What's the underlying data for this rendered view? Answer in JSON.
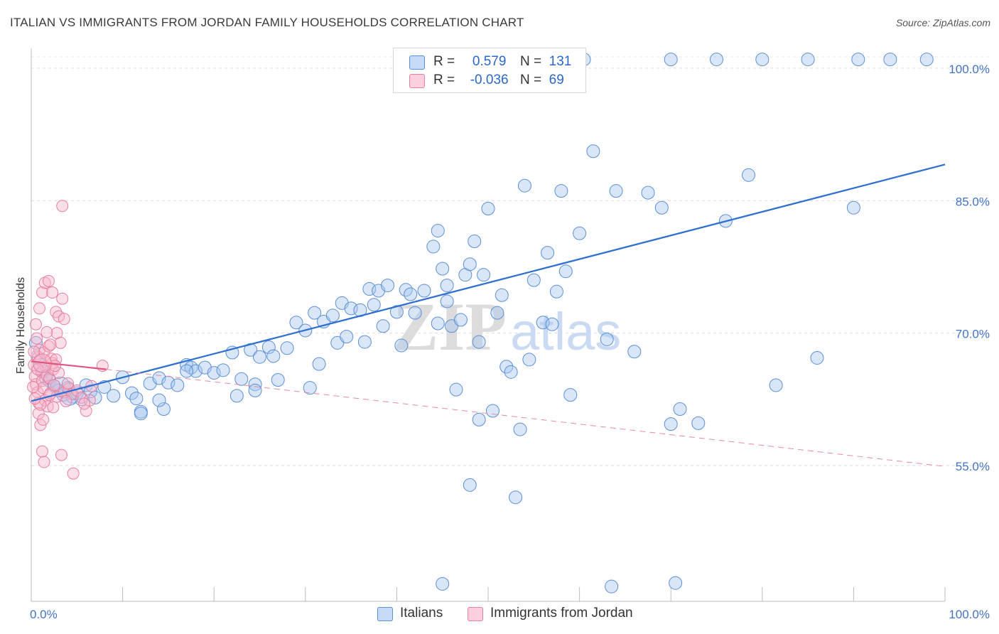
{
  "title": "ITALIAN VS IMMIGRANTS FROM JORDAN FAMILY HOUSEHOLDS CORRELATION CHART",
  "source": "Source: ZipAtlas.com",
  "watermark": {
    "zip": "ZIP",
    "atlas": "atlas"
  },
  "legend": {
    "rows": [
      {
        "r_label": "R =",
        "r_value": "0.579",
        "n_label": "N =",
        "n_value": "131",
        "color": "#a9c8f0",
        "border": "#5b8fd6"
      },
      {
        "r_label": "R =",
        "r_value": "-0.036",
        "n_label": "N =",
        "n_value": "69",
        "color": "#f7b8cc",
        "border": "#e67fa0"
      }
    ]
  },
  "bottom_legend": [
    {
      "label": "Italians",
      "color": "#a9c8f0",
      "border": "#5b8fd6"
    },
    {
      "label": "Immigrants from Jordan",
      "color": "#f7b8cc",
      "border": "#e67fa0"
    }
  ],
  "chart_data": {
    "type": "scatter",
    "xlabel": "",
    "ylabel": "Family Households",
    "xlim": [
      0,
      100
    ],
    "ylim": [
      42,
      101.5
    ],
    "x_tick_labels": [
      "0.0%",
      "100.0%"
    ],
    "y_ticks": [
      {
        "value": 100,
        "label": "100.0%"
      },
      {
        "value": 85,
        "label": "85.0%"
      },
      {
        "value": 70,
        "label": "70.0%"
      },
      {
        "value": 55,
        "label": "55.0%"
      }
    ],
    "grid": "horizontal dashed",
    "legend_position": "top-center",
    "series": [
      {
        "name": "Italians",
        "color": "#5b8fd6",
        "fill": "#a9c8f0",
        "trend": {
          "x": [
            0,
            100
          ],
          "y": [
            62.3,
            89.1
          ],
          "style": "solid"
        },
        "points": [
          [
            0.5,
            68.9
          ],
          [
            0.8,
            67.2
          ],
          [
            1.0,
            66.4
          ],
          [
            1.3,
            65.7
          ],
          [
            1.6,
            64.9
          ],
          [
            2.0,
            64.6
          ],
          [
            2.5,
            64.0
          ],
          [
            3.0,
            63.5
          ],
          [
            3.5,
            63.0
          ],
          [
            4.0,
            63.8
          ],
          [
            4.5,
            62.8
          ],
          [
            5.0,
            63.2
          ],
          [
            5.5,
            62.5
          ],
          [
            6.0,
            64.1
          ],
          [
            6.5,
            63.4
          ],
          [
            7.0,
            62.7
          ],
          [
            8.0,
            63.9
          ],
          [
            9.0,
            62.9
          ],
          [
            10.0,
            65.0
          ],
          [
            11.0,
            63.2
          ],
          [
            11.5,
            62.6
          ],
          [
            12.0,
            61.1
          ],
          [
            13.0,
            64.3
          ],
          [
            14.0,
            64.9
          ],
          [
            14.5,
            61.4
          ],
          [
            15.0,
            64.4
          ],
          [
            16.0,
            64.1
          ],
          [
            17.0,
            66.4
          ],
          [
            17.5,
            66.1
          ],
          [
            18.0,
            65.7
          ],
          [
            19.0,
            66.1
          ],
          [
            20.0,
            65.5
          ],
          [
            21.0,
            65.8
          ],
          [
            22.0,
            67.8
          ],
          [
            22.5,
            62.9
          ],
          [
            23.0,
            64.8
          ],
          [
            24.0,
            68.1
          ],
          [
            24.5,
            64.2
          ],
          [
            25.0,
            67.3
          ],
          [
            26.0,
            68.4
          ],
          [
            26.5,
            67.4
          ],
          [
            27.0,
            64.7
          ],
          [
            28.0,
            68.3
          ],
          [
            29.0,
            71.2
          ],
          [
            30.0,
            70.3
          ],
          [
            30.5,
            63.8
          ],
          [
            31.0,
            72.3
          ],
          [
            32.0,
            71.3
          ],
          [
            33.0,
            72.0
          ],
          [
            33.5,
            68.9
          ],
          [
            34.0,
            73.4
          ],
          [
            34.5,
            69.6
          ],
          [
            35.0,
            72.8
          ],
          [
            36.0,
            72.6
          ],
          [
            36.5,
            69.0
          ],
          [
            37.0,
            75.0
          ],
          [
            37.5,
            73.2
          ],
          [
            38.0,
            74.8
          ],
          [
            38.5,
            70.8
          ],
          [
            39.0,
            75.4
          ],
          [
            40.0,
            72.4
          ],
          [
            40.5,
            68.6
          ],
          [
            41.0,
            74.9
          ],
          [
            41.5,
            74.4
          ],
          [
            42.0,
            72.3
          ],
          [
            43.0,
            74.8
          ],
          [
            44.0,
            79.8
          ],
          [
            44.5,
            81.6
          ],
          [
            45.0,
            77.3
          ],
          [
            45.5,
            75.4
          ],
          [
            46.0,
            70.8
          ],
          [
            46.5,
            63.6
          ],
          [
            47.0,
            71.5
          ],
          [
            47.5,
            76.6
          ],
          [
            48.0,
            77.8
          ],
          [
            48.5,
            80.4
          ],
          [
            49.0,
            69.0
          ],
          [
            49.5,
            76.6
          ],
          [
            50.0,
            84.1
          ],
          [
            50.5,
            61.2
          ],
          [
            51.0,
            72.3
          ],
          [
            51.5,
            74.3
          ],
          [
            52.0,
            66.2
          ],
          [
            52.5,
            65.6
          ],
          [
            53.5,
            59.1
          ],
          [
            54.0,
            86.7
          ],
          [
            54.5,
            67.0
          ],
          [
            55.0,
            76.0
          ],
          [
            56.0,
            71.2
          ],
          [
            56.5,
            79.1
          ],
          [
            57.0,
            71.0
          ],
          [
            57.5,
            74.7
          ],
          [
            58.0,
            86.1
          ],
          [
            58.5,
            77.0
          ],
          [
            59.0,
            63.0
          ],
          [
            60.0,
            81.3
          ],
          [
            61.5,
            90.6
          ],
          [
            63.0,
            69.3
          ],
          [
            64.0,
            86.1
          ],
          [
            66.0,
            67.9
          ],
          [
            67.5,
            85.9
          ],
          [
            69.0,
            84.2
          ],
          [
            70.0,
            59.7
          ],
          [
            71.0,
            61.4
          ],
          [
            73.0,
            59.8
          ],
          [
            76.0,
            82.7
          ],
          [
            78.5,
            87.9
          ],
          [
            81.5,
            64.1
          ],
          [
            86.0,
            67.2
          ],
          [
            90.0,
            84.2
          ],
          [
            63.5,
            41.3
          ],
          [
            70.5,
            41.7
          ],
          [
            48.0,
            52.8
          ],
          [
            45.0,
            41.6
          ],
          [
            53.0,
            51.4
          ]
        ],
        "top_points_y100": [
          [
            55.8,
            101.0
          ],
          [
            60.5,
            101.0
          ],
          [
            70.0,
            101.0
          ],
          [
            75.0,
            101.0
          ],
          [
            80.0,
            101.0
          ],
          [
            85.0,
            101.0
          ],
          [
            90.5,
            101.0
          ],
          [
            94.0,
            101.0
          ],
          [
            98.0,
            101.0
          ]
        ],
        "outer_points": [
          [
            12.0,
            60.9
          ],
          [
            14.0,
            62.4
          ],
          [
            17.0,
            65.7
          ],
          [
            24.5,
            63.5
          ],
          [
            31.5,
            66.5
          ],
          [
            44.5,
            71.1
          ],
          [
            45.5,
            73.6
          ],
          [
            49.0,
            60.2
          ]
        ]
      },
      {
        "name": "Immigrants from Jordan",
        "color": "#e67fa0",
        "fill": "#f7b8cc",
        "trend_solid": {
          "x": [
            0,
            8.2
          ],
          "y": [
            66.8,
            65.9
          ],
          "style": "solid"
        },
        "trend_dashed": {
          "x": [
            8.2,
            100
          ],
          "y": [
            65.9,
            54.9
          ],
          "style": "dashed"
        },
        "points": [
          [
            0.3,
            66.4
          ],
          [
            0.4,
            65.1
          ],
          [
            0.5,
            64.2
          ],
          [
            0.6,
            67.4
          ],
          [
            0.7,
            63.3
          ],
          [
            0.8,
            62.1
          ],
          [
            0.9,
            68.1
          ],
          [
            1.0,
            66.9
          ],
          [
            1.1,
            65.6
          ],
          [
            1.2,
            64.6
          ],
          [
            1.3,
            63.8
          ],
          [
            1.4,
            67.8
          ],
          [
            1.5,
            62.4
          ],
          [
            1.6,
            66.2
          ],
          [
            1.7,
            65.2
          ],
          [
            1.8,
            61.7
          ],
          [
            1.9,
            68.5
          ],
          [
            2.0,
            64.9
          ],
          [
            2.1,
            63.2
          ],
          [
            2.2,
            67.1
          ],
          [
            2.3,
            66.6
          ],
          [
            2.4,
            65.9
          ],
          [
            2.5,
            64.1
          ],
          [
            0.5,
            71.0
          ],
          [
            0.9,
            72.8
          ],
          [
            1.2,
            74.6
          ],
          [
            1.5,
            75.7
          ],
          [
            1.9,
            75.9
          ],
          [
            2.3,
            74.6
          ],
          [
            2.7,
            72.4
          ],
          [
            3.0,
            71.9
          ],
          [
            3.4,
            73.9
          ],
          [
            3.6,
            71.6
          ],
          [
            2.8,
            70.0
          ],
          [
            3.2,
            68.9
          ],
          [
            0.8,
            60.9
          ],
          [
            1.0,
            59.6
          ],
          [
            1.2,
            56.6
          ],
          [
            1.4,
            55.4
          ],
          [
            3.3,
            56.2
          ],
          [
            4.6,
            54.1
          ],
          [
            3.4,
            84.4
          ],
          [
            2.4,
            61.6
          ],
          [
            2.8,
            62.8
          ],
          [
            3.6,
            63.3
          ],
          [
            4.1,
            63.7
          ],
          [
            4.5,
            63.1
          ],
          [
            5.0,
            63.5
          ],
          [
            5.5,
            62.7
          ],
          [
            6.0,
            61.2
          ],
          [
            6.4,
            62.4
          ],
          [
            7.8,
            66.3
          ],
          [
            2.7,
            67.0
          ],
          [
            3.0,
            65.5
          ],
          [
            1.7,
            70.1
          ],
          [
            2.1,
            68.7
          ],
          [
            0.6,
            69.4
          ],
          [
            0.7,
            65.9
          ],
          [
            1.0,
            61.9
          ],
          [
            1.3,
            60.2
          ],
          [
            0.4,
            62.6
          ],
          [
            0.2,
            63.9
          ],
          [
            0.3,
            67.9
          ],
          [
            2.0,
            63.0
          ],
          [
            2.6,
            66.3
          ],
          [
            4.0,
            64.3
          ],
          [
            3.8,
            62.3
          ],
          [
            5.8,
            62.0
          ],
          [
            6.6,
            64.0
          ]
        ]
      }
    ]
  }
}
